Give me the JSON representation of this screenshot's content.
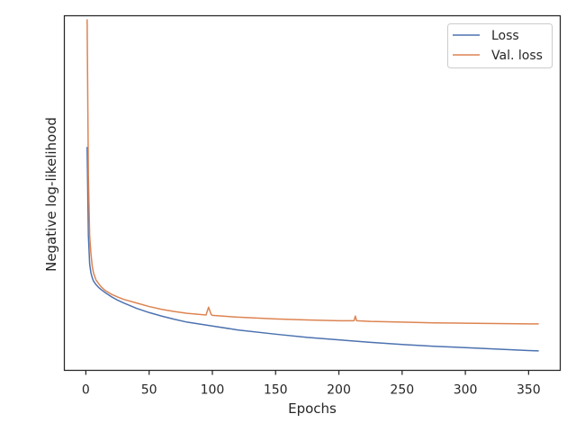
{
  "chart_data": {
    "type": "line",
    "title": "",
    "xlabel": "Epochs",
    "ylabel": "Negative log-likelihood",
    "xlim": [
      -17,
      375
    ],
    "xticks": [
      0,
      50,
      100,
      150,
      200,
      250,
      300,
      350
    ],
    "ylim": [
      0,
      1
    ],
    "yticks_shown": false,
    "grid": false,
    "legend_position": "top-right",
    "series": [
      {
        "name": "Loss",
        "color": "#4c72b0",
        "x": [
          1,
          2,
          3,
          4,
          5,
          6,
          8,
          10,
          12,
          15,
          20,
          25,
          30,
          40,
          50,
          60,
          70,
          80,
          100,
          120,
          150,
          175,
          200,
          225,
          250,
          275,
          300,
          325,
          350,
          358
        ],
        "y": [
          0.63,
          0.38,
          0.3,
          0.275,
          0.262,
          0.252,
          0.242,
          0.234,
          0.228,
          0.22,
          0.208,
          0.198,
          0.19,
          0.175,
          0.163,
          0.153,
          0.144,
          0.136,
          0.125,
          0.114,
          0.102,
          0.093,
          0.086,
          0.079,
          0.073,
          0.068,
          0.064,
          0.06,
          0.056,
          0.055
        ]
      },
      {
        "name": "Val. loss",
        "color": "#dd8452",
        "x": [
          1,
          2,
          3,
          4,
          5,
          6,
          8,
          10,
          12,
          15,
          20,
          25,
          30,
          40,
          50,
          60,
          70,
          80,
          95,
          97,
          99,
          100,
          120,
          150,
          175,
          200,
          212,
          213,
          214,
          225,
          250,
          275,
          300,
          325,
          350,
          358
        ],
        "y": [
          0.99,
          0.55,
          0.38,
          0.33,
          0.295,
          0.275,
          0.255,
          0.245,
          0.236,
          0.226,
          0.215,
          0.207,
          0.2,
          0.19,
          0.18,
          0.172,
          0.166,
          0.161,
          0.156,
          0.178,
          0.158,
          0.155,
          0.15,
          0.145,
          0.142,
          0.14,
          0.14,
          0.153,
          0.14,
          0.138,
          0.136,
          0.134,
          0.133,
          0.132,
          0.131,
          0.131
        ]
      }
    ]
  }
}
